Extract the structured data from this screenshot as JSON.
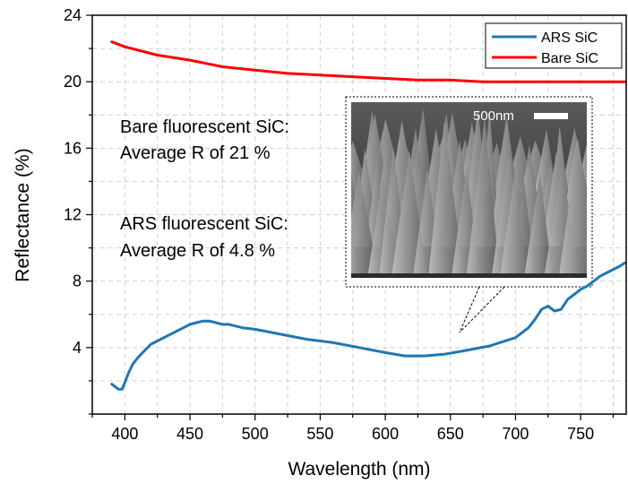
{
  "chart_data": {
    "type": "line",
    "title": "",
    "xlabel": "Wavelength (nm)",
    "ylabel": "Reflectance (%)",
    "xlim": [
      375,
      785
    ],
    "ylim": [
      0,
      24
    ],
    "x_ticks": [
      400,
      450,
      500,
      550,
      600,
      650,
      700,
      750
    ],
    "y_ticks": [
      4,
      8,
      12,
      16,
      20,
      24
    ],
    "grid": true,
    "legend_position": "top-right",
    "series": [
      {
        "name": "ARS SiC",
        "color": "#1f77b4",
        "x": [
          390,
          395,
          398,
          400,
          403,
          406,
          410,
          415,
          420,
          425,
          430,
          440,
          450,
          455,
          460,
          465,
          470,
          475,
          480,
          490,
          500,
          520,
          540,
          560,
          580,
          600,
          615,
          630,
          645,
          660,
          680,
          700,
          710,
          715,
          720,
          725,
          730,
          735,
          740,
          745,
          750,
          755,
          760,
          765,
          770,
          775,
          780,
          784
        ],
        "y": [
          1.8,
          1.5,
          1.5,
          1.9,
          2.5,
          3.0,
          3.4,
          3.8,
          4.2,
          4.4,
          4.6,
          5.0,
          5.4,
          5.5,
          5.6,
          5.6,
          5.5,
          5.4,
          5.4,
          5.2,
          5.1,
          4.8,
          4.5,
          4.3,
          4.0,
          3.7,
          3.5,
          3.5,
          3.6,
          3.8,
          4.1,
          4.6,
          5.2,
          5.7,
          6.3,
          6.5,
          6.2,
          6.3,
          6.9,
          7.2,
          7.5,
          7.7,
          8.0,
          8.3,
          8.5,
          8.7,
          8.9,
          9.1
        ]
      },
      {
        "name": "Bare SiC",
        "color": "#ff0000",
        "x": [
          390,
          400,
          425,
          450,
          475,
          500,
          525,
          550,
          575,
          600,
          625,
          650,
          675,
          700,
          725,
          750,
          784
        ],
        "y": [
          22.4,
          22.1,
          21.6,
          21.3,
          20.9,
          20.7,
          20.5,
          20.4,
          20.3,
          20.2,
          20.1,
          20.1,
          20.0,
          20.0,
          20.0,
          20.0,
          20.0
        ]
      }
    ],
    "annotations": {
      "bare_title": "Bare fluorescent SiC:",
      "bare_value": "Average R of 21 %",
      "ars_title": "ARS fluorescent SiC:",
      "ars_value": "Average R of 4.8 %"
    },
    "inset": {
      "scale_bar_label": "500nm",
      "pointer_target_x": 657,
      "pointer_target_y": 5.8
    }
  }
}
